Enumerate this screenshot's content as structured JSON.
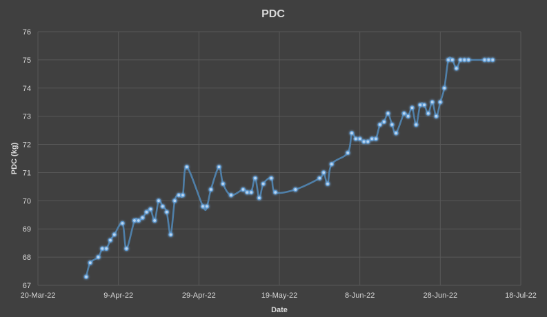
{
  "chart_data": {
    "type": "scatter",
    "title": "PDC",
    "xlabel": "Date",
    "ylabel": "PDC (kg)",
    "ylim": [
      67,
      76
    ],
    "y_ticks": [
      "67",
      "68",
      "69",
      "70",
      "71",
      "72",
      "73",
      "74",
      "75",
      "76"
    ],
    "x_tick_labels": [
      "20-Mar-22",
      "9-Apr-22",
      "29-Apr-22",
      "19-May-22",
      "8-Jun-22",
      "28-Jun-22",
      "18-Jul-22"
    ],
    "x_range_days_from_20_Mar_22": [
      0,
      120
    ],
    "grid": true,
    "colors": {
      "series": "#5b9bd5",
      "line": "#4f7fa8",
      "grid": "#595959",
      "text": "#d9d9d9",
      "background": "#404040"
    },
    "series": [
      {
        "name": "PDC",
        "x_days": [
          12,
          13,
          15,
          16,
          17,
          18,
          19,
          21,
          22,
          24,
          25,
          26,
          27,
          28,
          29,
          30,
          31,
          32,
          33,
          34,
          35,
          36,
          37,
          41,
          42,
          43,
          45,
          46,
          48,
          51,
          52,
          53,
          54,
          55,
          56,
          58,
          59,
          64,
          70,
          71,
          72,
          73,
          77,
          78,
          79,
          80,
          81,
          82,
          83,
          84,
          85,
          86,
          87,
          88,
          89,
          91,
          92,
          93,
          94,
          95,
          96,
          97,
          98,
          99,
          100,
          101,
          102,
          103,
          104,
          105,
          106,
          107,
          111,
          112,
          113
        ],
        "values": [
          67.3,
          67.8,
          68.0,
          68.3,
          68.3,
          68.6,
          68.8,
          69.2,
          68.3,
          69.3,
          69.3,
          69.4,
          69.6,
          69.7,
          69.3,
          70.0,
          69.8,
          69.6,
          68.8,
          70.0,
          70.2,
          70.2,
          71.2,
          69.8,
          69.8,
          70.4,
          71.2,
          70.6,
          70.2,
          70.4,
          70.3,
          70.3,
          70.8,
          70.1,
          70.6,
          70.8,
          70.3,
          70.4,
          70.8,
          71.0,
          70.6,
          71.3,
          71.7,
          72.4,
          72.2,
          72.2,
          72.1,
          72.1,
          72.2,
          72.2,
          72.7,
          72.8,
          73.1,
          72.7,
          72.4,
          73.1,
          73.0,
          73.3,
          72.7,
          73.4,
          73.4,
          73.1,
          73.5,
          73.0,
          73.5,
          74.0,
          75.0,
          75.0,
          74.7,
          75.0,
          75.0,
          75.0,
          75.0,
          75.0,
          75.0
        ],
        "values_note": "approximate reading from gridlines"
      }
    ]
  }
}
